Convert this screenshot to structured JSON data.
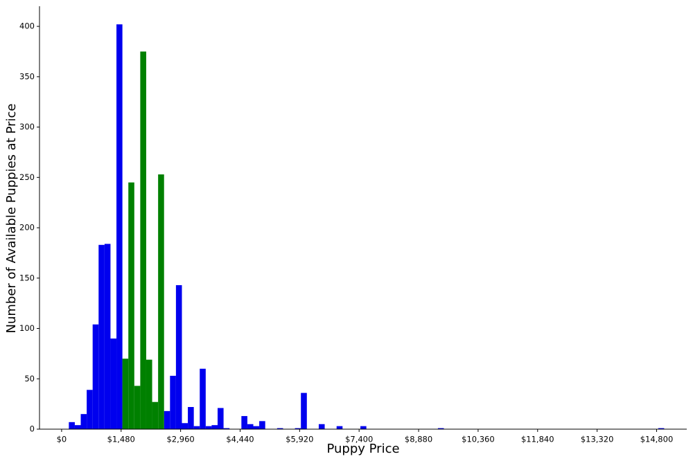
{
  "chart_data": {
    "type": "bar",
    "xlabel": "Puppy Price",
    "ylabel": "Number of Available Puppies at Price",
    "xlim": [
      -550,
      15550
    ],
    "ylim": [
      0,
      420
    ],
    "bin_width": 148,
    "x_ticks": [
      0,
      1480,
      2960,
      4440,
      5920,
      7400,
      8880,
      10360,
      11840,
      13320,
      14800
    ],
    "x_tick_labels": [
      "$0",
      "$1,480",
      "$2,960",
      "$4,440",
      "$5,920",
      "$7,400",
      "$8,880",
      "$10,360",
      "$11,840",
      "$13,320",
      "$14,800"
    ],
    "y_ticks": [
      0,
      50,
      100,
      150,
      200,
      250,
      300,
      350,
      400
    ],
    "y_tick_labels": [
      "0",
      "50",
      "100",
      "150",
      "200",
      "250",
      "300",
      "350",
      "400"
    ],
    "grid": false,
    "colors": {
      "blue": "#0000ee",
      "green": "#008000",
      "axis": "#000000"
    },
    "series": [
      {
        "color": "blue",
        "bins": [
          {
            "x": 180,
            "y": 7
          },
          {
            "x": 328,
            "y": 4
          },
          {
            "x": 476,
            "y": 15
          },
          {
            "x": 624,
            "y": 39
          },
          {
            "x": 772,
            "y": 104
          },
          {
            "x": 920,
            "y": 183
          },
          {
            "x": 1068,
            "y": 184
          },
          {
            "x": 1216,
            "y": 90
          },
          {
            "x": 1364,
            "y": 402
          },
          {
            "x": 2548,
            "y": 18
          },
          {
            "x": 2696,
            "y": 53
          },
          {
            "x": 2844,
            "y": 143
          },
          {
            "x": 2992,
            "y": 6
          },
          {
            "x": 3140,
            "y": 22
          },
          {
            "x": 3288,
            "y": 3
          },
          {
            "x": 3436,
            "y": 60
          },
          {
            "x": 3584,
            "y": 3
          },
          {
            "x": 3732,
            "y": 4
          },
          {
            "x": 3880,
            "y": 21
          },
          {
            "x": 4028,
            "y": 1
          },
          {
            "x": 4472,
            "y": 13
          },
          {
            "x": 4620,
            "y": 5
          },
          {
            "x": 4768,
            "y": 3
          },
          {
            "x": 4916,
            "y": 8
          },
          {
            "x": 5360,
            "y": 1
          },
          {
            "x": 5804,
            "y": 1
          },
          {
            "x": 5952,
            "y": 36
          },
          {
            "x": 6396,
            "y": 5
          },
          {
            "x": 6840,
            "y": 3
          },
          {
            "x": 7432,
            "y": 3
          },
          {
            "x": 9360,
            "y": 1
          },
          {
            "x": 14840,
            "y": 1
          }
        ]
      },
      {
        "color": "green",
        "bins": [
          {
            "x": 1512,
            "y": 70
          },
          {
            "x": 1660,
            "y": 245
          },
          {
            "x": 1808,
            "y": 43
          },
          {
            "x": 1956,
            "y": 375
          },
          {
            "x": 2104,
            "y": 69
          },
          {
            "x": 2252,
            "y": 27
          },
          {
            "x": 2400,
            "y": 253
          }
        ]
      }
    ]
  }
}
